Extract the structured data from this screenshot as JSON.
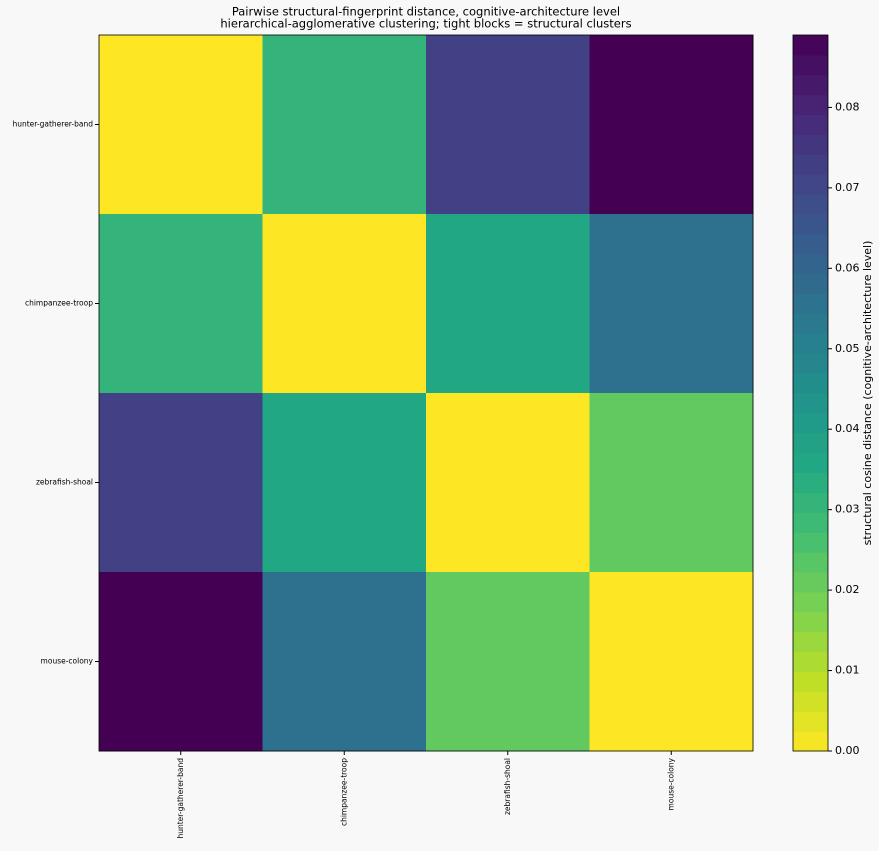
{
  "chart_data": {
    "type": "heatmap",
    "title": "Pairwise structural-fingerprint distance, cognitive-architecture level",
    "subtitle": "hierarchical-agglomerative clustering; tight blocks = structural clusters",
    "x_categories": [
      "hunter-gatherer-band",
      "chimpanzee-troop",
      "zebrafish-shoal",
      "mouse-colony"
    ],
    "y_categories": [
      "hunter-gatherer-band",
      "chimpanzee-troop",
      "zebrafish-shoal",
      "mouse-colony"
    ],
    "values": [
      [
        0,
        0.031,
        0.072,
        0.089
      ],
      [
        0.031,
        0,
        0.036,
        0.056
      ],
      [
        0.072,
        0.036,
        0,
        0.022
      ],
      [
        0.089,
        0.056,
        0.022,
        0
      ]
    ],
    "colormap": "viridis_r",
    "colorbar_label": "structural cosine distance (cognitive-architecture level)",
    "clim": [
      0,
      0.089
    ],
    "cticks": [
      {
        "value": 0,
        "label": "0.00"
      },
      0.01,
      0.02,
      0.03,
      0.04,
      0.05,
      0.06,
      0.07,
      0.08
    ]
  }
}
